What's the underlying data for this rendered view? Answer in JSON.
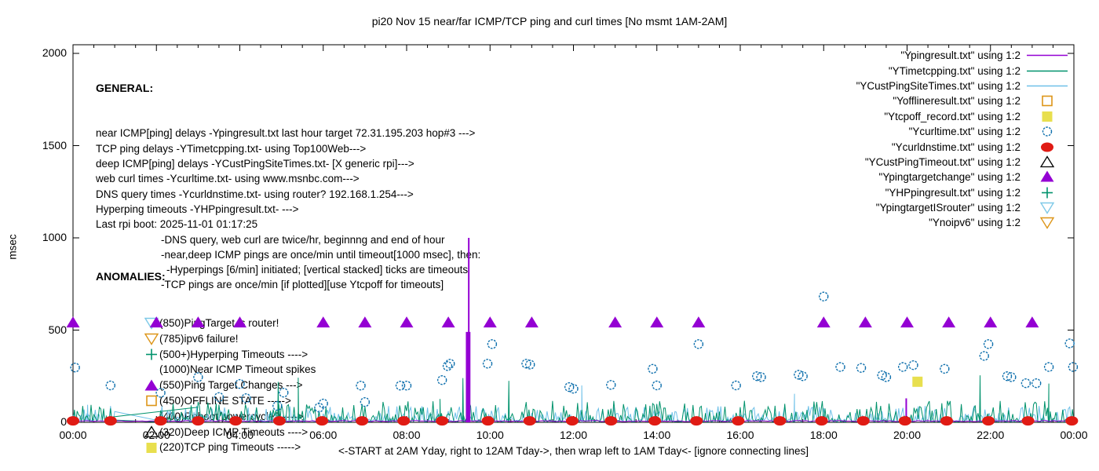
{
  "chart_data": {
    "type": "line+scatter",
    "title": "pi20 Nov 15  near/far ICMP/TCP ping and curl times [No msmt 1AM-2AM]",
    "xlabel": "<-START at 2AM Yday, right to 12AM Tday->, then wrap left to 1AM Tday<- [ignore connecting lines]",
    "ylabel": "msec",
    "xlim_hours": [
      0,
      24
    ],
    "ylim": [
      0,
      2000
    ],
    "grid": false,
    "legend_position": "top-right-inside",
    "x_tick_labels": [
      "00:00",
      "02:00",
      "04:00",
      "06:00",
      "08:00",
      "10:00",
      "12:00",
      "14:00",
      "16:00",
      "18:00",
      "20:00",
      "22:00",
      "00:00"
    ],
    "x_major_interval_hours": 2,
    "x_minor_interval_hours": 0.5,
    "y_tick_values": [
      0,
      500,
      1000,
      1500,
      2000
    ],
    "series": [
      {
        "key": "ypingresult",
        "label": "\"Ypingresult.txt\" using 1:2",
        "style": "line",
        "color": "#9400d3",
        "baseline": {
          "level": 4,
          "jitter": 6,
          "seed": 11,
          "step_min": 5
        },
        "impulses": [
          [
            9.49,
            1000
          ],
          [
            19.98,
            130
          ]
        ],
        "thick_impulse": {
          "t0": 9.42,
          "t1": 9.53,
          "v": 490
        }
      },
      {
        "key": "ytimetcpping",
        "label": "\"YTimetcpping.txt\" using 1:2",
        "style": "line",
        "color": "#00926c",
        "noise": {
          "seed": 9,
          "base": 2,
          "amp": 115,
          "pow": 3.4,
          "step_min": 2
        },
        "gap_hours": [
          1.0,
          2.05
        ],
        "connector": [
          [
            0.9,
            28
          ],
          [
            3.0,
            82
          ]
        ],
        "spikes": [
          [
            4.92,
            219
          ],
          [
            5.4,
            242
          ],
          [
            8.8,
            127
          ],
          [
            9.35,
            240
          ],
          [
            10.45,
            225
          ],
          [
            21.75,
            255
          ],
          [
            23.4,
            210
          ]
        ]
      },
      {
        "key": "ycustpingsitetimes",
        "label": "\"YCustPingSiteTimes.txt\" using 1:2",
        "style": "line",
        "color": "#6ec0e8",
        "noise": {
          "seed": 5,
          "base": 5,
          "amp": 85,
          "pow": 2.8,
          "step_min": 2
        },
        "gap_hours": [
          1.0,
          2.05
        ],
        "spikes": [
          [
            0.35,
            95
          ],
          [
            12.2,
            200
          ],
          [
            17.3,
            155
          ]
        ]
      },
      {
        "key": "yofflineresult",
        "label": "\"Yofflineresult.txt\" using 1:2",
        "style": "marker",
        "marker": "square-open",
        "color": "#dd9518",
        "points": []
      },
      {
        "key": "ytcpoff_record",
        "label": "\"Ytcpoff_record.txt\" using 1:2",
        "style": "marker",
        "marker": "square-filled",
        "color": "#e8df4e",
        "points": [
          [
            20.25,
            220
          ]
        ]
      },
      {
        "key": "ycurltime",
        "label": "\"Ycurltime.txt\" using 1:2",
        "style": "marker",
        "marker": "circle-open",
        "color": "#0f70ad",
        "points": [
          [
            0.05,
            297
          ],
          [
            0.9,
            200
          ],
          [
            2.1,
            160
          ],
          [
            3.0,
            245
          ],
          [
            3.5,
            137
          ],
          [
            4.0,
            208
          ],
          [
            4.15,
            131
          ],
          [
            4.9,
            89
          ],
          [
            5.05,
            161
          ],
          [
            5.9,
            80
          ],
          [
            6.0,
            102
          ],
          [
            6.9,
            199
          ],
          [
            7.0,
            110
          ],
          [
            7.85,
            199
          ],
          [
            8.0,
            199
          ],
          [
            8.85,
            229
          ],
          [
            8.98,
            305
          ],
          [
            9.04,
            318
          ],
          [
            9.94,
            318
          ],
          [
            10.05,
            424
          ],
          [
            10.87,
            318
          ],
          [
            10.96,
            313
          ],
          [
            11.9,
            191
          ],
          [
            12.0,
            182
          ],
          [
            12.9,
            203
          ],
          [
            13.9,
            290
          ],
          [
            14.0,
            200
          ],
          [
            15.0,
            424
          ],
          [
            15.9,
            200
          ],
          [
            16.4,
            250
          ],
          [
            16.5,
            245
          ],
          [
            17.4,
            258
          ],
          [
            17.5,
            250
          ],
          [
            18.0,
            682
          ],
          [
            18.4,
            300
          ],
          [
            18.9,
            295
          ],
          [
            19.4,
            255
          ],
          [
            19.5,
            245
          ],
          [
            19.9,
            300
          ],
          [
            20.15,
            310
          ],
          [
            20.9,
            290
          ],
          [
            21.85,
            360
          ],
          [
            21.95,
            424
          ],
          [
            22.4,
            250
          ],
          [
            22.5,
            245
          ],
          [
            22.85,
            212
          ],
          [
            23.1,
            212
          ],
          [
            23.4,
            300
          ],
          [
            23.9,
            428
          ],
          [
            23.98,
            300
          ]
        ]
      },
      {
        "key": "ycurldnstime",
        "label": "\"Ycurldnstime.txt\" using 1:2",
        "style": "marker",
        "marker": "circle-filled",
        "color": "#e01b14",
        "points": [
          [
            0,
            8
          ],
          [
            0.9,
            8
          ],
          [
            2.1,
            8
          ],
          [
            3.0,
            8
          ],
          [
            3.9,
            8
          ],
          [
            4.95,
            8
          ],
          [
            5.97,
            8
          ],
          [
            6.93,
            8
          ],
          [
            7.93,
            8
          ],
          [
            8.85,
            8
          ],
          [
            9.95,
            8
          ],
          [
            10.95,
            8
          ],
          [
            11.97,
            8
          ],
          [
            12.9,
            8
          ],
          [
            13.95,
            8
          ],
          [
            14.95,
            8
          ],
          [
            15.95,
            8
          ],
          [
            16.95,
            8
          ],
          [
            17.95,
            8
          ],
          [
            18.95,
            8
          ],
          [
            19.95,
            8
          ],
          [
            20.95,
            8
          ],
          [
            21.95,
            8
          ],
          [
            22.9,
            8
          ],
          [
            23.95,
            8
          ]
        ]
      },
      {
        "key": "ycustpingtimeout",
        "label": "\"YCustPingTimeout.txt\" using 1:2",
        "style": "marker",
        "marker": "tri-up-open",
        "color": "#000000",
        "points": []
      },
      {
        "key": "ypingtargetchange",
        "label": "\"Ypingtargetchange\" using 1:2",
        "style": "marker",
        "marker": "tri-up-filled",
        "color": "#9400d3",
        "points": [
          [
            0,
            540
          ],
          [
            2,
            540
          ],
          [
            3,
            540
          ],
          [
            4,
            540
          ],
          [
            6,
            540
          ],
          [
            7,
            540
          ],
          [
            8,
            540
          ],
          [
            9,
            540
          ],
          [
            10,
            540
          ],
          [
            11,
            540
          ],
          [
            13,
            540
          ],
          [
            14,
            540
          ],
          [
            15,
            540
          ],
          [
            18,
            540
          ],
          [
            19,
            540
          ],
          [
            20,
            540
          ],
          [
            21,
            540
          ],
          [
            22,
            540
          ],
          [
            23,
            540
          ]
        ]
      },
      {
        "key": "yhppingresult",
        "label": "\"YHPpingresult.txt\" using 1:2",
        "style": "marker",
        "marker": "plus",
        "color": "#00926c",
        "points": []
      },
      {
        "key": "ypingtargetisrouter",
        "label": "\"YpingtargetISrouter\" using 1:2",
        "style": "marker",
        "marker": "tri-down-open",
        "color": "#7ec9e8",
        "points": []
      },
      {
        "key": "ynoipv6",
        "label": "\"Ynoipv6\" using 1:2",
        "style": "marker",
        "marker": "tri-down-open",
        "color": "#dd9518",
        "points": []
      }
    ]
  },
  "annotations": {
    "general": {
      "header": "GENERAL:",
      "lines": [
        {
          "ind": 0,
          "text": "near ICMP[ping] delays -Ypingresult.txt last hour target 72.31.195.203 hop#3 --->"
        },
        {
          "ind": 0,
          "text": "TCP ping delays -YTimetcpping.txt- using Top100Web--->"
        },
        {
          "ind": 0,
          "text": "deep ICMP[ping] delays -YCustPingSiteTimes.txt- [X generic rpi]--->"
        },
        {
          "ind": 0,
          "text": "web curl times -Ycurltime.txt- using www.msnbc.com--->"
        },
        {
          "ind": 0,
          "text": "DNS query times -Ycurldnstime.txt- using router? 192.168.1.254--->"
        },
        {
          "ind": 0,
          "text": "Hyperping timeouts -YHPpingresult.txt- --->"
        },
        {
          "ind": 0,
          "text": "Last rpi boot: 2025-11-01 01:17:25"
        },
        {
          "ind": 1,
          "text": "-DNS query, web curl are twice/hr, beginnng and end of hour"
        },
        {
          "ind": 1,
          "text": "-near,deep ICMP pings are once/min until timeout[1000 msec], then:"
        },
        {
          "ind": 2,
          "text": "-Hyperpings [6/min] initiated; [vertical stacked] ticks are timeouts"
        },
        {
          "ind": 1,
          "text": "-TCP pings are once/min [if plotted][use Ytcpoff for timeouts]"
        }
      ]
    },
    "anomalies": {
      "header": "ANOMALIES:",
      "lines": [
        {
          "marker": "tri-down-open",
          "color": "#7ec9e8",
          "text": "(850)PingTarget is router!"
        },
        {
          "marker": "tri-down-open",
          "color": "#dd9518",
          "text": "(785)ipv6 failure!"
        },
        {
          "marker": "plus",
          "color": "#00926c",
          "text": "(500+)Hyperping Timeouts ---->"
        },
        {
          "marker": null,
          "color": null,
          "text": "(1000)Near ICMP Timeout spikes"
        },
        {
          "marker": "tri-up-filled",
          "color": "#9400d3",
          "text": "(550)Ping Target Changes --->"
        },
        {
          "marker": "square-open",
          "color": "#dd9518",
          "text": "(450)OFFLINE STATE ----->"
        },
        {
          "marker": null,
          "color": null,
          "text": "(400)Reboot/powercycle? ---->"
        },
        {
          "marker": "tri-up-open",
          "color": "#000000",
          "text": "(320)Deep ICMP Timeouts ---->"
        },
        {
          "marker": "square-filled",
          "color": "#e8df4e",
          "text": "(220)TCP ping Timeouts ----->"
        }
      ]
    }
  },
  "colors": {
    "background": "#ffffff",
    "axis": "#000000",
    "purple": "#9400d3",
    "teal": "#00926c",
    "light_blue": "#6ec0e8",
    "orange": "#dd9518",
    "yellow": "#e8df4e",
    "blue": "#0f70ad",
    "red": "#e01b14"
  }
}
